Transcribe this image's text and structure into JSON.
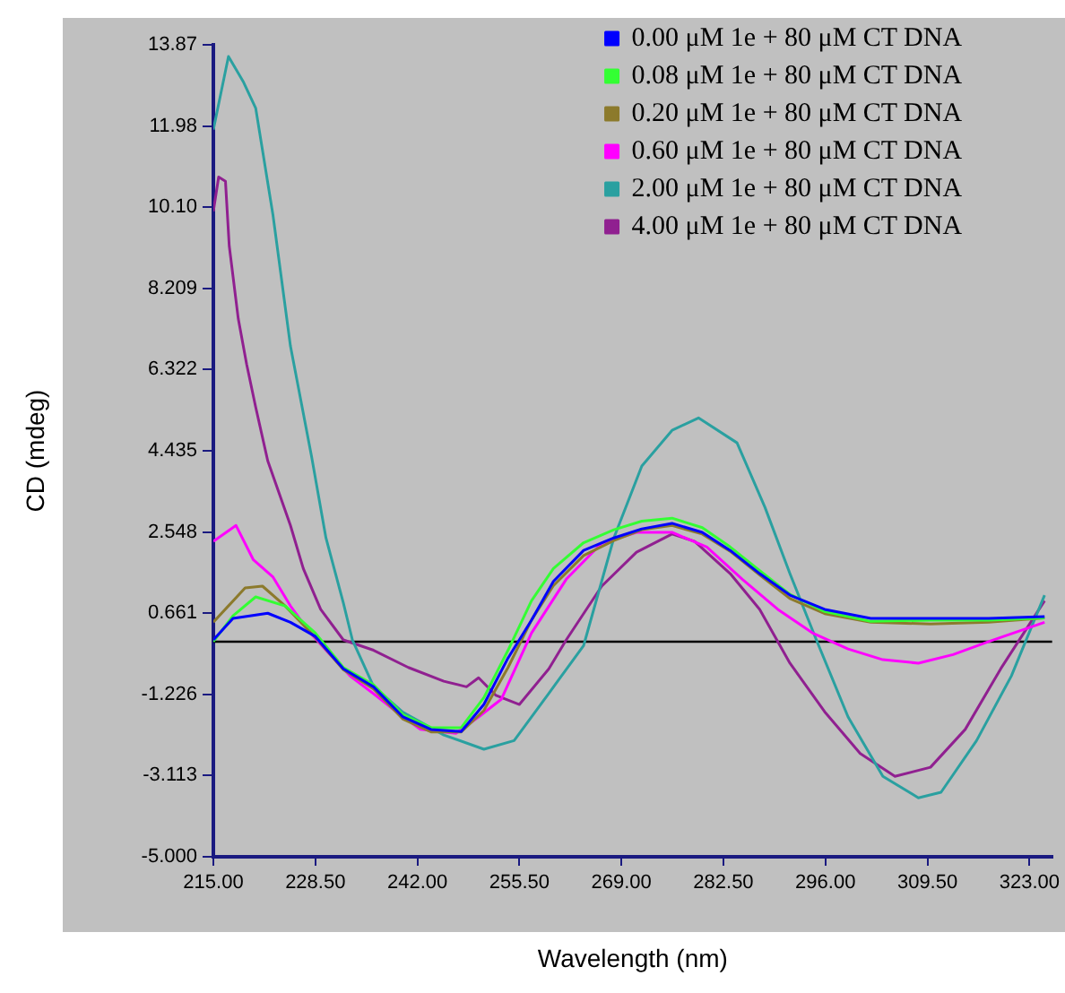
{
  "chart_data": {
    "type": "line",
    "xlabel": "Wavelength (nm)",
    "ylabel": "CD (mdeg)",
    "xlim": [
      215,
      326
    ],
    "xticks": [
      {
        "value": 215,
        "label": "215.00"
      },
      {
        "value": 228.5,
        "label": "228.50"
      },
      {
        "value": 242,
        "label": "242.00"
      },
      {
        "value": 255.5,
        "label": "255.50"
      },
      {
        "value": 269,
        "label": "269.00"
      },
      {
        "value": 282.5,
        "label": "282.50"
      },
      {
        "value": 296,
        "label": "296.00"
      },
      {
        "value": 309.5,
        "label": "309.50"
      },
      {
        "value": 323,
        "label": "323.00"
      }
    ],
    "ylim": [
      -5,
      13.87
    ],
    "yticks": [
      {
        "value": -5,
        "label": "-5.000"
      },
      -3.113,
      -1.226,
      0.661,
      2.548,
      4.435,
      6.322,
      8.209,
      {
        "value": 10.1,
        "label": "10.10"
      },
      11.98,
      13.87
    ],
    "legend": "top right",
    "grid": false,
    "marker": "none",
    "line_style": "solid",
    "ref_lines": [
      {
        "axis": "y",
        "value": 0,
        "color": "#000000"
      }
    ],
    "series": [
      {
        "name": "0.00 μM 1e + 80 μM CT DNA",
        "color": "#0000ff",
        "x": [
          215,
          217.6,
          222.2,
          225.2,
          228.5,
          232.2,
          236.2,
          240.1,
          243.8,
          247.8,
          250.8,
          254,
          257.1,
          260,
          264,
          268,
          271.7,
          275.7,
          279.7,
          283.4,
          287.3,
          291.3,
          295.9,
          302,
          309.9,
          317.6,
          325
        ],
        "values": [
          0.04,
          0.54,
          0.66,
          0.45,
          0.12,
          -0.63,
          -1.05,
          -1.75,
          -2.04,
          -2.09,
          -1.46,
          -0.38,
          0.5,
          1.4,
          2.12,
          2.41,
          2.62,
          2.75,
          2.54,
          2.12,
          1.58,
          1.08,
          0.75,
          0.54,
          0.54,
          0.54,
          0.58
        ]
      },
      {
        "name": "0.08 μM 1e + 80 μM CT DNA",
        "color": "#33ff33",
        "x": [
          215,
          217.6,
          220.6,
          224.5,
          228.5,
          232.2,
          236.2,
          240.1,
          243.8,
          247.8,
          250.8,
          254,
          257.1,
          260,
          264,
          268,
          271.7,
          275.7,
          279.7,
          283.4,
          287.3,
          291.3,
          295.9,
          302,
          309.9,
          317.6,
          325
        ],
        "values": [
          0.0,
          0.6,
          1.04,
          0.83,
          0.2,
          -0.6,
          -1.0,
          -1.7,
          -2.0,
          -2.0,
          -1.3,
          -0.2,
          0.95,
          1.7,
          2.3,
          2.6,
          2.8,
          2.87,
          2.65,
          2.2,
          1.65,
          1.1,
          0.7,
          0.47,
          0.5,
          0.5,
          0.55
        ]
      },
      {
        "name": "0.20 μM 1e + 80 μM CT DNA",
        "color": "#8c7a2c",
        "x": [
          215,
          219.2,
          221.5,
          224.5,
          228.5,
          232.2,
          236.2,
          240.1,
          243.8,
          247.8,
          250.8,
          254,
          257.1,
          260,
          264,
          268,
          271.7,
          275.7,
          279.7,
          283.4,
          287.3,
          291.3,
          295.9,
          302,
          309.9,
          317.6,
          325
        ],
        "values": [
          0.45,
          1.25,
          1.29,
          0.83,
          0.1,
          -0.65,
          -1.1,
          -1.8,
          -2.1,
          -2.1,
          -1.6,
          -0.6,
          0.5,
          1.3,
          2.0,
          2.35,
          2.6,
          2.7,
          2.5,
          2.1,
          1.55,
          1.0,
          0.65,
          0.45,
          0.41,
          0.45,
          0.55
        ]
      },
      {
        "name": "0.60 μM 1e + 80 μM CT DNA",
        "color": "#ff00ff",
        "x": [
          215,
          218,
          220.3,
          222.9,
          225.2,
          227.6,
          229.9,
          233.1,
          236.2,
          239.2,
          242.4,
          247.1,
          250.1,
          253.1,
          257.1,
          261.7,
          266.4,
          271,
          275.7,
          280.3,
          285,
          289.7,
          294.3,
          299,
          303.6,
          308.3,
          312.9,
          317.6,
          325
        ],
        "values": [
          2.33,
          2.7,
          1.9,
          1.5,
          0.83,
          0.25,
          -0.2,
          -0.8,
          -1.21,
          -1.63,
          -2.04,
          -2.13,
          -1.75,
          -1.34,
          0.2,
          1.45,
          2.29,
          2.54,
          2.54,
          2.2,
          1.45,
          0.75,
          0.2,
          -0.17,
          -0.42,
          -0.5,
          -0.3,
          0.0,
          0.45
        ]
      },
      {
        "name": "2.00 μM 1e + 80 μM CT DNA",
        "color": "#2aa0a0",
        "x": [
          215,
          217,
          219,
          220.6,
          222.9,
          225.2,
          228,
          229.9,
          232.2,
          233.4,
          236.2,
          240,
          245.5,
          250.8,
          254.8,
          259.4,
          264,
          268,
          271.7,
          275.7,
          279.2,
          284.3,
          288,
          291.3,
          294.8,
          299,
          303.6,
          308.3,
          311.3,
          316,
          320.6,
          325
        ],
        "values": [
          11.9,
          13.6,
          13.0,
          12.4,
          9.9,
          6.87,
          4.3,
          2.41,
          0.9,
          0.04,
          -1.04,
          -1.63,
          -2.17,
          -2.5,
          -2.3,
          -1.2,
          -0.09,
          2.41,
          4.08,
          4.91,
          5.2,
          4.62,
          3.12,
          1.58,
          0.04,
          -1.75,
          -3.13,
          -3.63,
          -3.5,
          -2.3,
          -0.8,
          1.08
        ]
      },
      {
        "name": "4.00 μM 1e + 80 μM CT DNA",
        "color": "#902090",
        "x": [
          215,
          215.7,
          216.6,
          217.1,
          218.3,
          219.4,
          220.6,
          222.2,
          225.2,
          226.9,
          229.2,
          232.2,
          236.2,
          240.8,
          245.5,
          248.5,
          250.1,
          252.4,
          255.5,
          259.4,
          261.7,
          266.4,
          271,
          275.7,
          278.7,
          283.4,
          287.3,
          291.3,
          295.9,
          300.6,
          305.2,
          309.9,
          314.5,
          319.2,
          325
        ],
        "values": [
          10.0,
          10.8,
          10.7,
          9.2,
          7.5,
          6.45,
          5.45,
          4.2,
          2.7,
          1.7,
          0.75,
          0.04,
          -0.2,
          -0.6,
          -0.92,
          -1.05,
          -0.84,
          -1.25,
          -1.46,
          -0.63,
          0.04,
          1.29,
          2.08,
          2.5,
          2.33,
          1.58,
          0.75,
          -0.5,
          -1.63,
          -2.6,
          -3.13,
          -2.92,
          -2.04,
          -0.63,
          0.95
        ]
      }
    ]
  }
}
